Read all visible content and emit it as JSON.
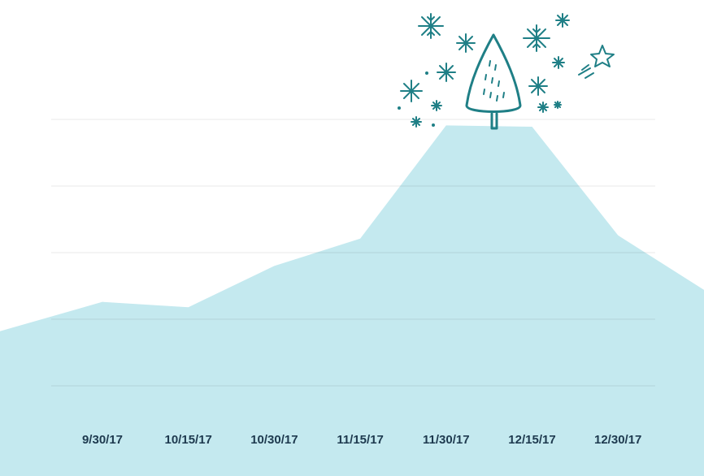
{
  "chart_data": {
    "type": "area",
    "categories": [
      null,
      "9/30/17",
      "10/15/17",
      "10/30/17",
      "11/15/17",
      "11/30/17",
      "12/15/17",
      "12/30/17",
      null
    ],
    "values": [
      1.82,
      2.26,
      2.18,
      2.8,
      3.21,
      4.91,
      4.89,
      3.26,
      2.44
    ],
    "color": "#c4e9ef",
    "ylim": [
      0,
      5
    ],
    "yticks": [
      1,
      2,
      3,
      4,
      5
    ],
    "grid": true
  }
}
